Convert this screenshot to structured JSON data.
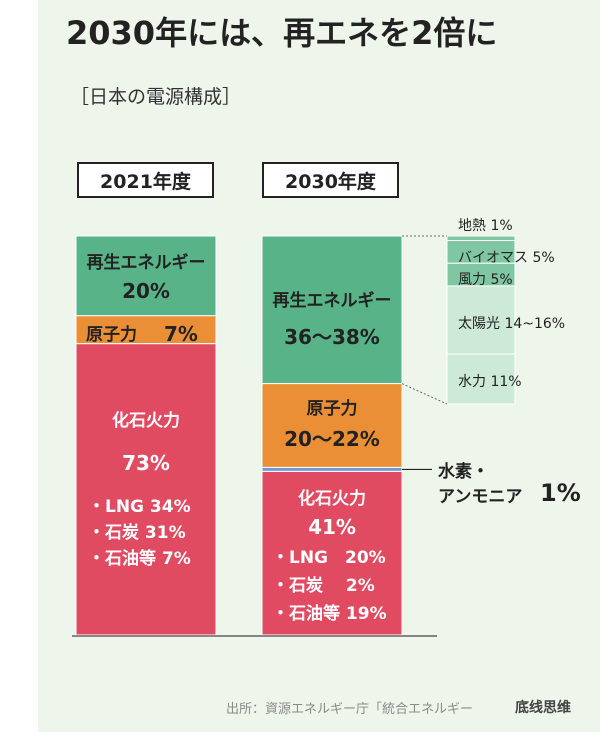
{
  "title": "2030年には、再エネを2倍に",
  "subtitle": "［日本の電源構成］",
  "chart_data": {
    "type": "bar",
    "stacked": true,
    "unit": "%",
    "categories": [
      "2021年度",
      "2030年度"
    ],
    "series_2021": [
      {
        "name": "再生エネルギー",
        "label": "20%",
        "value": 20,
        "color": "#58b389"
      },
      {
        "name": "原子力",
        "label": "7%",
        "value": 7,
        "color": "#ea8f35"
      },
      {
        "name": "化石火力",
        "label": "73%",
        "value": 73,
        "color": "#e04b62",
        "breakdown": [
          "・LNG 34%",
          "・石炭 31%",
          "・石油等 7%"
        ]
      }
    ],
    "series_2030": [
      {
        "name": "再生エネルギー",
        "label": "36～38%",
        "value": 37,
        "color": "#58b389"
      },
      {
        "name": "原子力",
        "label": "20～22%",
        "value": 21,
        "color": "#ea8f35"
      },
      {
        "name": "水素・アンモニア",
        "label": "1%",
        "value": 1,
        "color": "#6b9bd6"
      },
      {
        "name": "化石火力",
        "label": "41%",
        "value": 41,
        "color": "#e04b62",
        "breakdown": [
          "・LNG　20%",
          "・石炭　 2%",
          "・石油等 19%"
        ]
      }
    ],
    "renewable_breakdown_2030": [
      {
        "name": "地熱",
        "label": "地熱 1%",
        "value": 1
      },
      {
        "name": "バイオマス",
        "label": "バイオマス 5%",
        "value": 5
      },
      {
        "name": "風力",
        "label": "風力 5%",
        "value": 5
      },
      {
        "name": "太陽光",
        "label": "太陽光 14~16%",
        "value": 15
      },
      {
        "name": "水力",
        "label": "水力 11%",
        "value": 11
      }
    ],
    "hydrogen_label_line1": "水素・",
    "hydrogen_label_line2": "アンモニア",
    "hydrogen_value": "1%"
  },
  "colors": {
    "renewable": "#58b389",
    "nuclear": "#ea8f35",
    "fossil": "#e04b62",
    "hydrogen": "#6b9bd6",
    "breakdown_dark": "#7fc6a3",
    "breakdown_light": "#cde9d8"
  },
  "source": "出所：資源エネルギー庁「統合エネルギー",
  "watermark": "底线思维"
}
